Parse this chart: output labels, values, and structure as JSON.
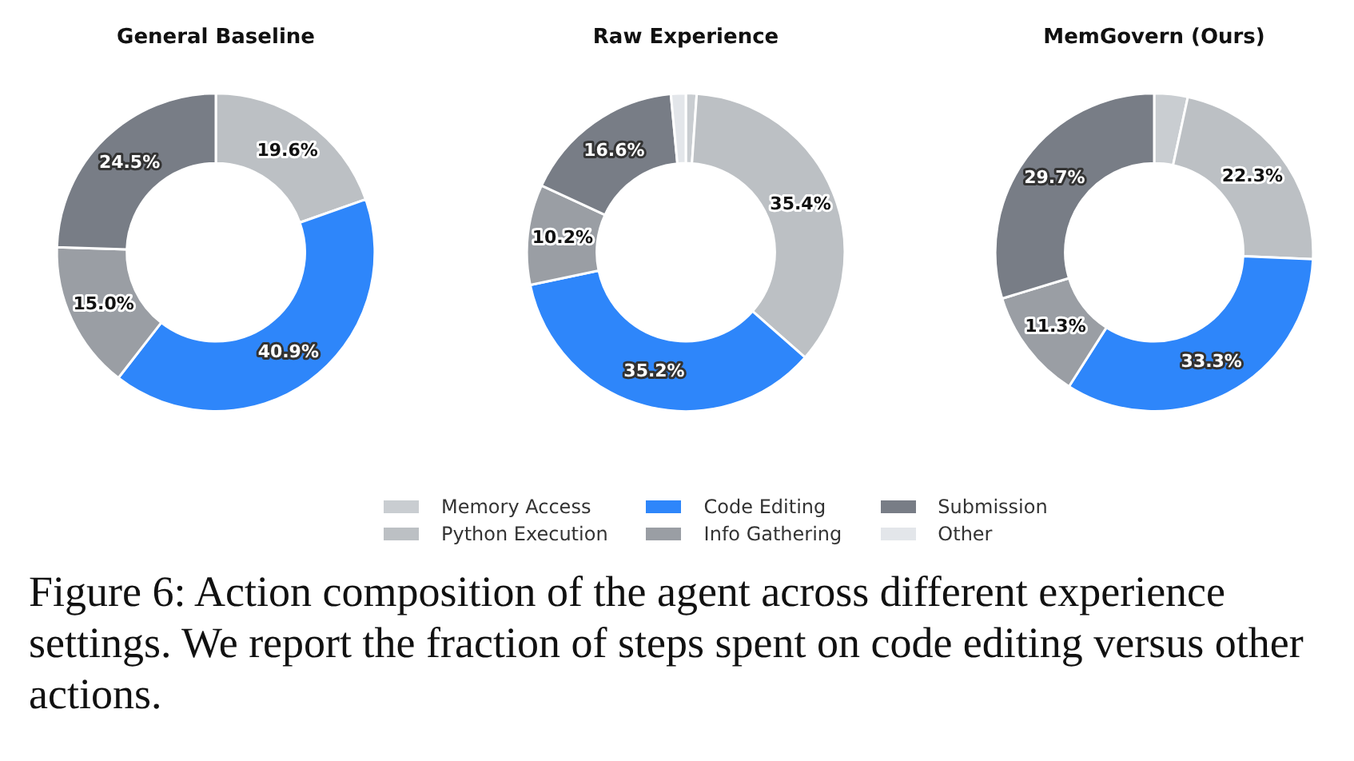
{
  "chart_data": [
    {
      "type": "donut",
      "title": "General Baseline",
      "categories": [
        "Memory Access",
        "Python Execution",
        "Code Editing",
        "Info Gathering",
        "Submission",
        "Other"
      ],
      "values": [
        0,
        19.6,
        40.9,
        15.0,
        24.5,
        0
      ],
      "colors": [
        "#c9cdd1",
        "#bcc0c4",
        "#2e86fa",
        "#9a9ea4",
        "#787d86",
        "#e3e6ea"
      ],
      "value_labels": [
        null,
        "19.6%",
        "40.9%",
        "15.0%",
        "24.5%",
        null
      ],
      "legend": "bottom",
      "annotations": [
        "Figure 6: Action composition of the agent across different experience settings. We report the fraction of steps spent on code editing versus other actions."
      ]
    },
    {
      "type": "donut",
      "title": "Raw Experience",
      "categories": [
        null,
        null,
        null,
        null,
        null,
        null
      ],
      "values": [
        1.1,
        35.4,
        35.2,
        10.2,
        16.6,
        1.5
      ],
      "colors": [
        "#c9cdd1",
        "#bcc0c4",
        "#2e86fa",
        "#9a9ea4",
        "#787d86",
        "#e3e6ea"
      ],
      "value_labels": [
        null,
        "35.4%",
        "35.2%",
        "10.2%",
        "16.6%",
        null
      ]
    },
    {
      "type": "donut",
      "title": "MemGovern (Ours)",
      "categories": [
        null,
        null,
        null,
        null,
        null,
        null
      ],
      "values": [
        3.4,
        22.3,
        33.3,
        11.3,
        29.7,
        0
      ],
      "colors": [
        "#c9cdd1",
        "#bcc0c4",
        "#2e86fa",
        "#9a9ea4",
        "#787d86",
        "#e3e6ea"
      ],
      "value_labels": [
        null,
        "22.3%",
        "33.3%",
        "11.3%",
        "29.7%",
        null
      ]
    }
  ]
}
